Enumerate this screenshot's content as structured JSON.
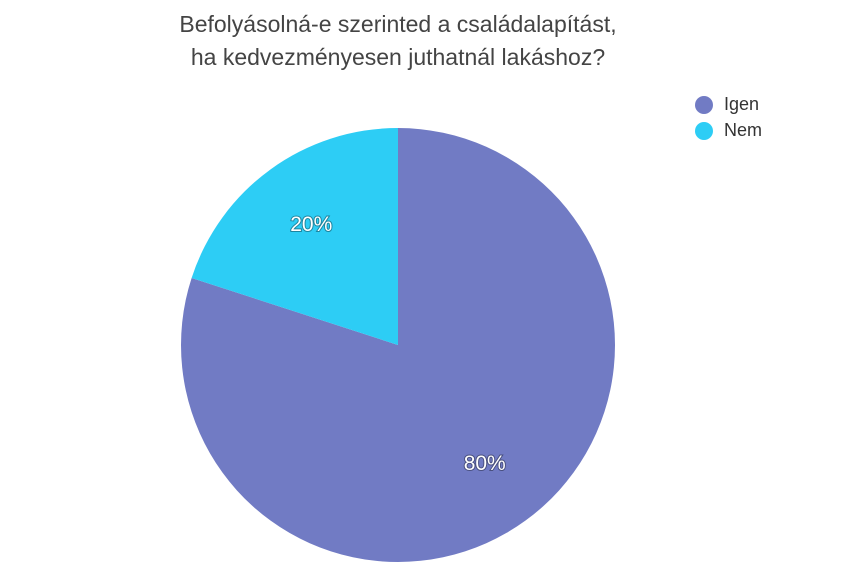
{
  "chart_data": {
    "type": "pie",
    "title": "Befolyásolná-e szerinted a családalapítást, ha kedvezményesen juthatnál lakáshoz?",
    "categories": [
      "Igen",
      "Nem"
    ],
    "values": [
      80,
      20
    ],
    "value_labels": [
      "80%",
      "20%"
    ],
    "colors": [
      "#717bc4",
      "#2dcdf5"
    ],
    "legend": "top-right"
  }
}
